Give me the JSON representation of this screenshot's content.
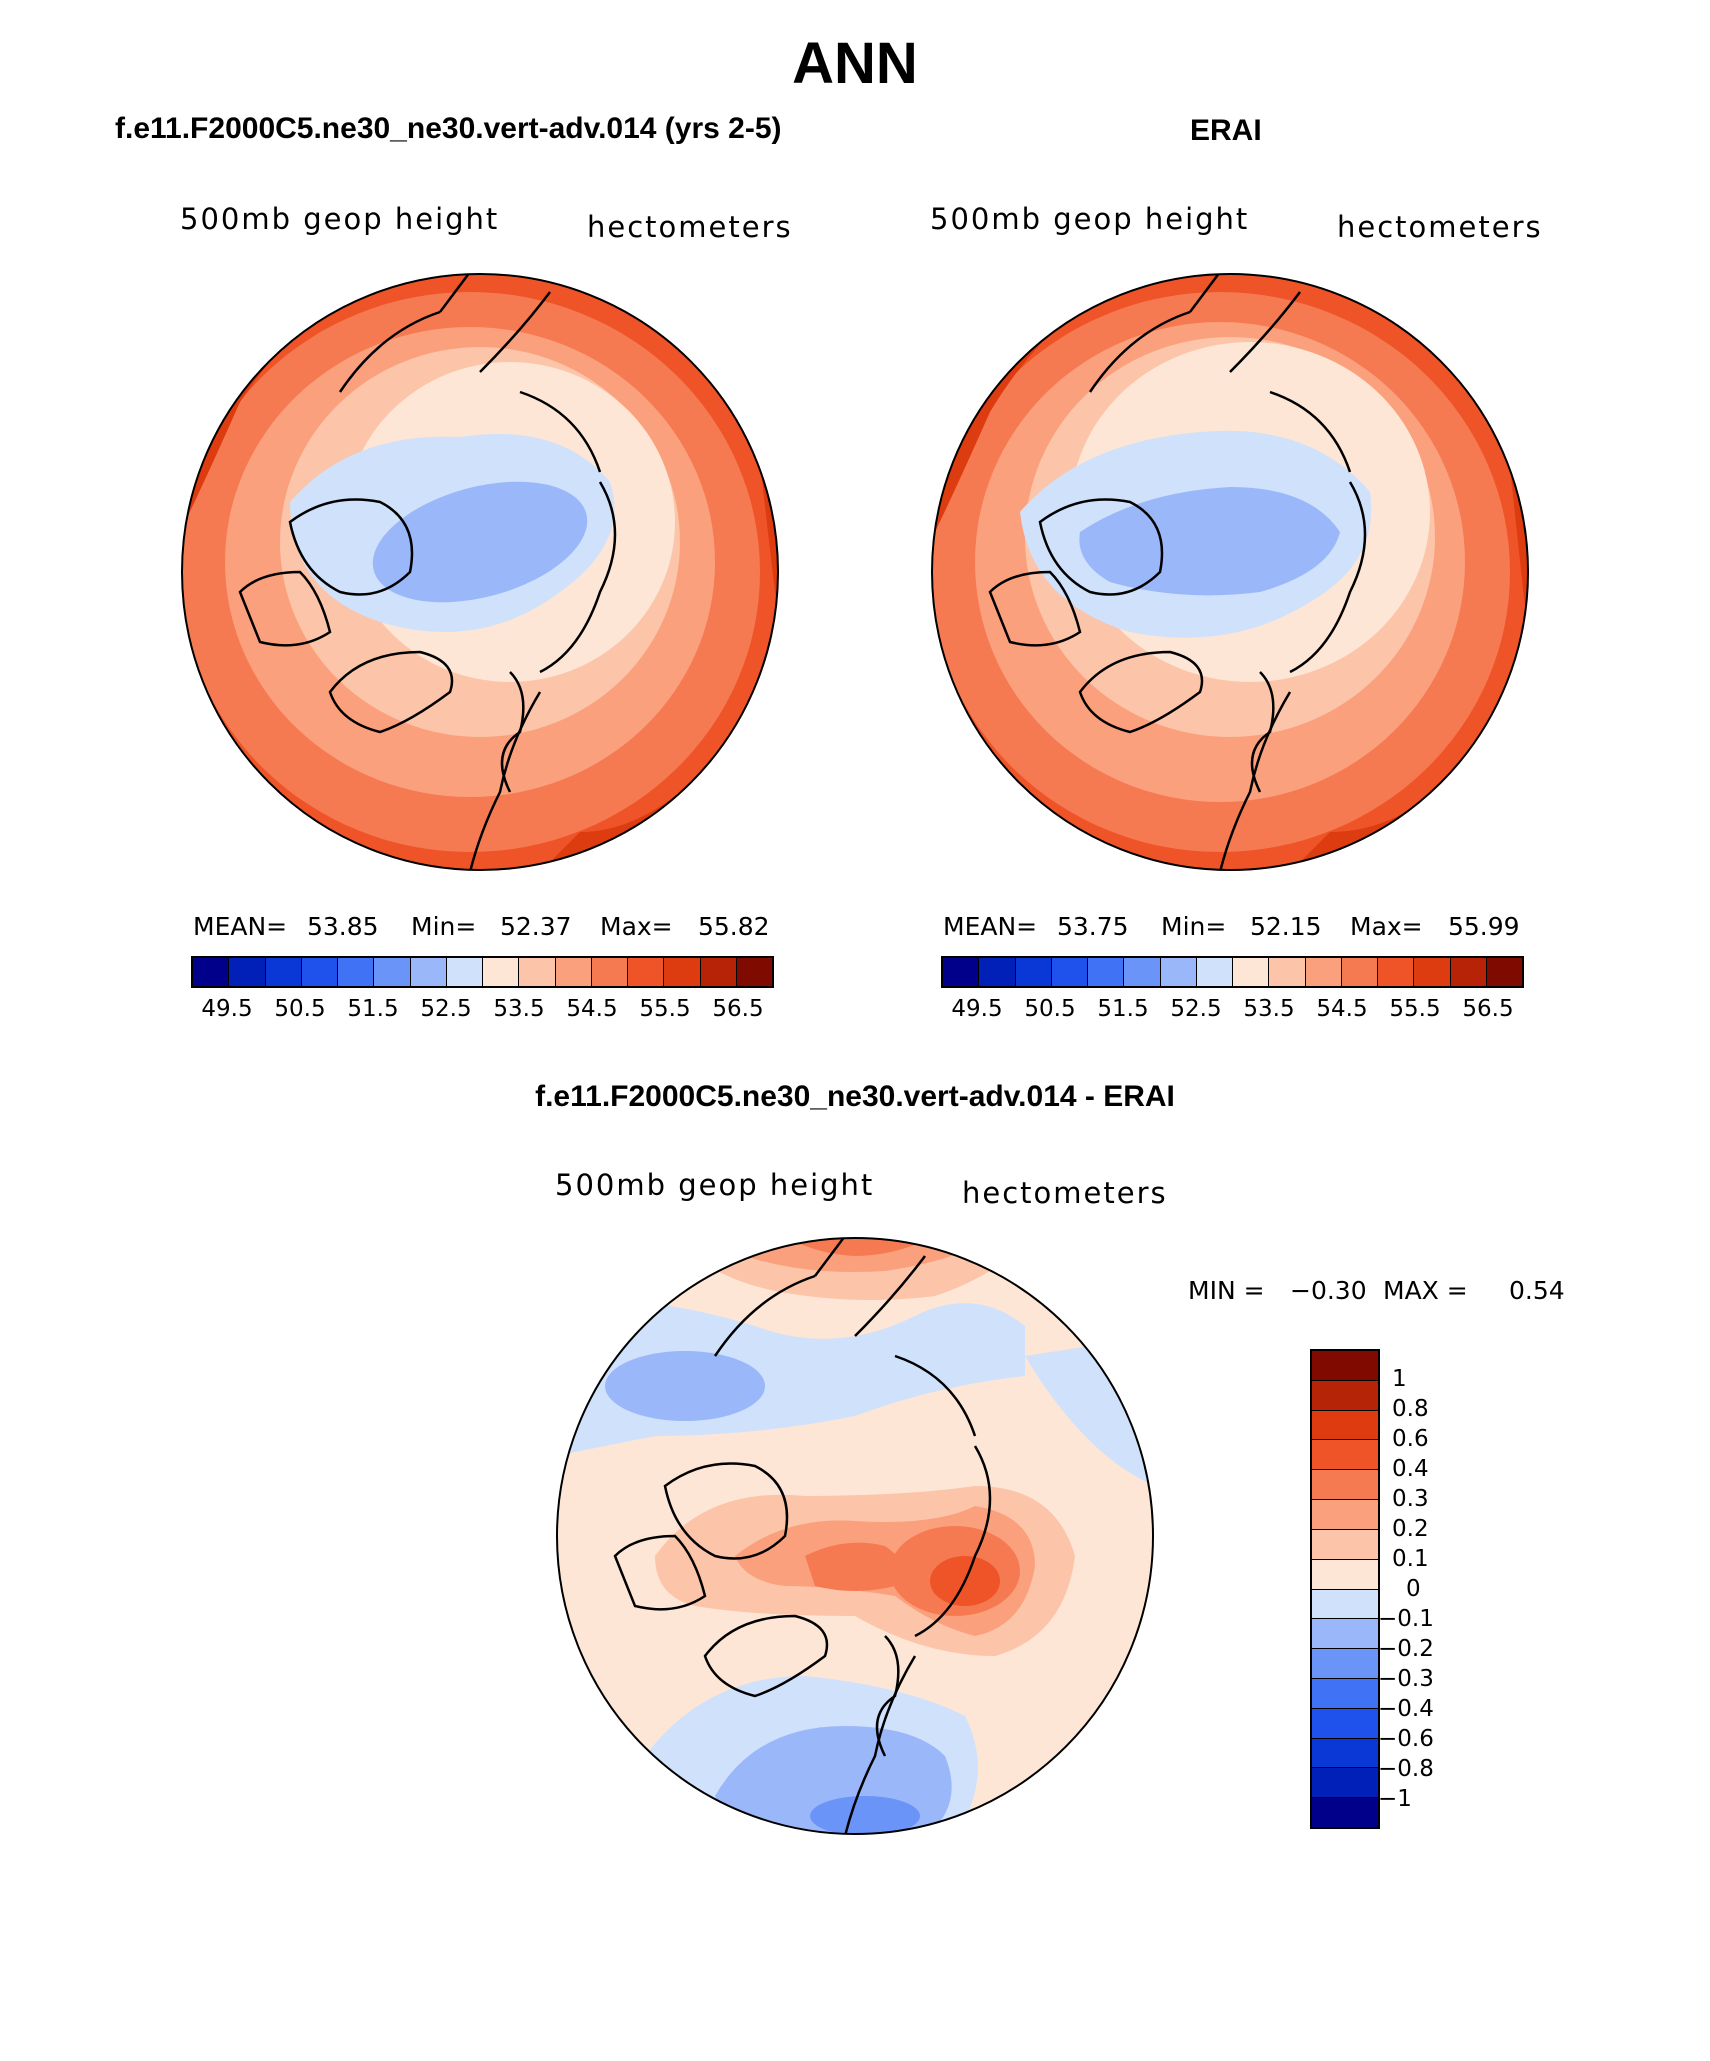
{
  "title": "ANN",
  "panels": [
    {
      "subtitle": "f.e11.F2000C5.ne30_ne30.vert-adv.014 (yrs 2-5)",
      "variable": "500mb geop height",
      "units": "hectometers",
      "stats": {
        "mean_label": "MEAN=",
        "mean": "53.85",
        "min_label": "Min=",
        "min": "52.37",
        "max_label": "Max=",
        "max": "55.82"
      }
    },
    {
      "subtitle": "ERAI",
      "variable": "500mb geop height",
      "units": "hectometers",
      "stats": {
        "mean_label": "MEAN=",
        "mean": "53.75",
        "min_label": "Min=",
        "min": "52.15",
        "max_label": "Max=",
        "max": "55.99"
      }
    },
    {
      "subtitle": "f.e11.F2000C5.ne30_ne30.vert-adv.014 - ERAI",
      "variable": "500mb geop height",
      "units": "hectometers",
      "stats": {
        "min_label": "MIN =",
        "min": "−0.30",
        "max_label": "MAX =",
        "max": "0.54"
      }
    }
  ],
  "abs_colorbar": {
    "colors": [
      "#00008b",
      "#0020b8",
      "#0a38d6",
      "#1f52ec",
      "#3f72f5",
      "#6b94f8",
      "#9ab7fa",
      "#cfe1fb",
      "#fde6d5",
      "#fcc4a8",
      "#fba07d",
      "#f67a51",
      "#ef5428",
      "#dd3b10",
      "#b72306",
      "#7e0a00"
    ],
    "labels": [
      "49.5",
      "50.5",
      "51.5",
      "52.5",
      "53.5",
      "54.5",
      "55.5",
      "56.5"
    ]
  },
  "diff_colorbar": {
    "colors": [
      "#800a00",
      "#b52406",
      "#de3b10",
      "#ef5428",
      "#f67a51",
      "#fba07d",
      "#fcc4a8",
      "#fde6d5",
      "#cfe1fb",
      "#9ab7fa",
      "#6b94f8",
      "#3f72f5",
      "#1f52ec",
      "#0a38d6",
      "#0020b8",
      "#00008b"
    ],
    "labels": [
      "1",
      "0.8",
      "0.6",
      "0.4",
      "0.3",
      "0.2",
      "0.1",
      "0",
      "−0.1",
      "−0.2",
      "−0.3",
      "−0.4",
      "−0.6",
      "−0.8",
      "−1"
    ]
  },
  "map_colors": {
    "abs": [
      "#fde6d5",
      "#fcc4a8",
      "#fba07d",
      "#f67a51",
      "#ef5428",
      "#dd3b10",
      "#cfe1fb",
      "#9ab7fa"
    ],
    "diff": [
      "#fde6d5",
      "#cfe1fb",
      "#9ab7fa",
      "#6b94f8",
      "#fcc4a8",
      "#fba07d",
      "#f67a51",
      "#ef5428"
    ]
  }
}
